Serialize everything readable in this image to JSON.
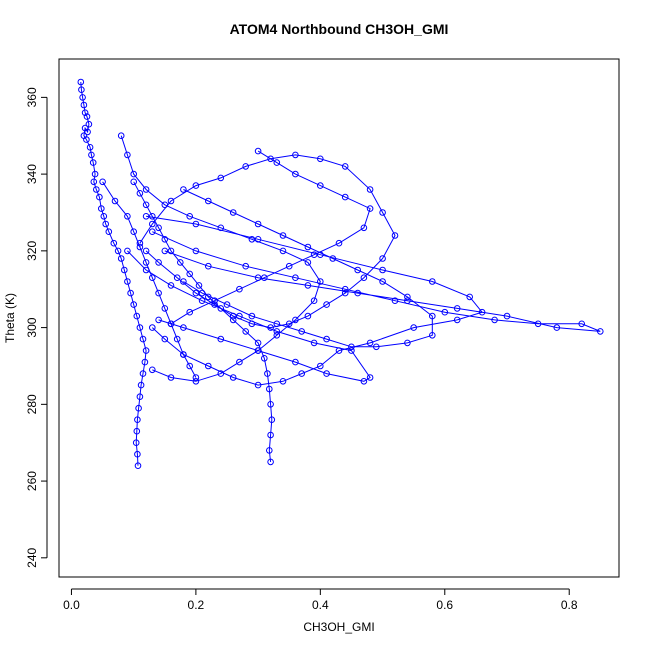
{
  "chart_data": {
    "type": "scatter",
    "title": "ATOM4 Northbound CH3OH_GMI",
    "xlabel": "CH3OH_GMI",
    "ylabel": "Theta (K)",
    "xlim": [
      -0.02,
      0.88
    ],
    "ylim": [
      235,
      370
    ],
    "x_ticks": [
      "0.0",
      "0.2",
      "0.4",
      "0.6",
      "0.8"
    ],
    "y_ticks": [
      "240",
      "260",
      "280",
      "300",
      "320",
      "340",
      "360"
    ],
    "grid": false,
    "legend": "none",
    "marker": "open-circle",
    "connected": true,
    "color": "#0000ff",
    "series": [
      {
        "points": [
          [
            0.015,
            364
          ],
          [
            0.016,
            362
          ],
          [
            0.018,
            360
          ],
          [
            0.02,
            358
          ],
          [
            0.022,
            356
          ],
          [
            0.025,
            355
          ],
          [
            0.028,
            353
          ],
          [
            0.026,
            351
          ],
          [
            0.022,
            352
          ],
          [
            0.02,
            350
          ],
          [
            0.024,
            349
          ],
          [
            0.03,
            347
          ],
          [
            0.032,
            345
          ],
          [
            0.035,
            343
          ],
          [
            0.038,
            340
          ],
          [
            0.036,
            338
          ],
          [
            0.04,
            336
          ],
          [
            0.045,
            334
          ],
          [
            0.048,
            331
          ],
          [
            0.052,
            329
          ],
          [
            0.055,
            327
          ],
          [
            0.06,
            325
          ],
          [
            0.068,
            322
          ],
          [
            0.075,
            320
          ],
          [
            0.08,
            318
          ],
          [
            0.085,
            315
          ],
          [
            0.09,
            312
          ],
          [
            0.095,
            309
          ],
          [
            0.1,
            306
          ],
          [
            0.105,
            303
          ],
          [
            0.11,
            300
          ],
          [
            0.115,
            297
          ],
          [
            0.12,
            294
          ],
          [
            0.118,
            291
          ],
          [
            0.115,
            288
          ],
          [
            0.112,
            285
          ],
          [
            0.11,
            282
          ],
          [
            0.108,
            279
          ],
          [
            0.106,
            276
          ],
          [
            0.105,
            273
          ],
          [
            0.104,
            270
          ],
          [
            0.106,
            267
          ],
          [
            0.107,
            264
          ]
        ]
      },
      {
        "points": [
          [
            0.1,
            338
          ],
          [
            0.11,
            335
          ],
          [
            0.12,
            332
          ],
          [
            0.13,
            329
          ],
          [
            0.14,
            326
          ],
          [
            0.15,
            323
          ],
          [
            0.16,
            320
          ],
          [
            0.175,
            317
          ],
          [
            0.19,
            314
          ],
          [
            0.205,
            311
          ],
          [
            0.22,
            308
          ],
          [
            0.24,
            305
          ],
          [
            0.26,
            302
          ],
          [
            0.28,
            299
          ],
          [
            0.3,
            296
          ],
          [
            0.31,
            292
          ],
          [
            0.315,
            288
          ],
          [
            0.318,
            284
          ],
          [
            0.32,
            280
          ],
          [
            0.322,
            276
          ],
          [
            0.32,
            272
          ],
          [
            0.318,
            268
          ],
          [
            0.32,
            265
          ]
        ]
      },
      {
        "points": [
          [
            0.11,
            322
          ],
          [
            0.13,
            327
          ],
          [
            0.16,
            333
          ],
          [
            0.2,
            337
          ],
          [
            0.24,
            339
          ],
          [
            0.28,
            342
          ],
          [
            0.32,
            344
          ],
          [
            0.36,
            345
          ],
          [
            0.4,
            344
          ],
          [
            0.44,
            342
          ],
          [
            0.48,
            336
          ],
          [
            0.5,
            330
          ],
          [
            0.52,
            324
          ],
          [
            0.5,
            318
          ],
          [
            0.47,
            313
          ],
          [
            0.44,
            309
          ],
          [
            0.41,
            306
          ],
          [
            0.38,
            303
          ],
          [
            0.35,
            301
          ],
          [
            0.32,
            300
          ],
          [
            0.29,
            301
          ],
          [
            0.26,
            303
          ],
          [
            0.23,
            306
          ],
          [
            0.2,
            309
          ],
          [
            0.17,
            313
          ],
          [
            0.14,
            317
          ],
          [
            0.12,
            320
          ]
        ]
      },
      {
        "points": [
          [
            0.13,
            325
          ],
          [
            0.2,
            320
          ],
          [
            0.28,
            316
          ],
          [
            0.36,
            313
          ],
          [
            0.44,
            310
          ],
          [
            0.52,
            307
          ],
          [
            0.6,
            304
          ],
          [
            0.68,
            302
          ],
          [
            0.75,
            301
          ],
          [
            0.82,
            301
          ],
          [
            0.85,
            299
          ],
          [
            0.78,
            300
          ],
          [
            0.7,
            303
          ],
          [
            0.62,
            305
          ],
          [
            0.54,
            307
          ],
          [
            0.46,
            309
          ],
          [
            0.38,
            311
          ],
          [
            0.3,
            313
          ],
          [
            0.22,
            316
          ],
          [
            0.15,
            320
          ]
        ]
      },
      {
        "points": [
          [
            0.12,
            329
          ],
          [
            0.2,
            327
          ],
          [
            0.3,
            323
          ],
          [
            0.4,
            319
          ],
          [
            0.5,
            315
          ],
          [
            0.58,
            312
          ],
          [
            0.64,
            308
          ],
          [
            0.66,
            304
          ],
          [
            0.62,
            302
          ],
          [
            0.55,
            300
          ],
          [
            0.48,
            296
          ],
          [
            0.43,
            294
          ],
          [
            0.4,
            290
          ],
          [
            0.37,
            288
          ],
          [
            0.34,
            286
          ],
          [
            0.3,
            285
          ],
          [
            0.26,
            287
          ],
          [
            0.22,
            290
          ],
          [
            0.18,
            293
          ],
          [
            0.15,
            297
          ],
          [
            0.13,
            300
          ]
        ]
      },
      {
        "points": [
          [
            0.18,
            336
          ],
          [
            0.22,
            333
          ],
          [
            0.26,
            330
          ],
          [
            0.3,
            327
          ],
          [
            0.34,
            324
          ],
          [
            0.38,
            321
          ],
          [
            0.42,
            318
          ],
          [
            0.46,
            315
          ],
          [
            0.5,
            312
          ],
          [
            0.54,
            308
          ],
          [
            0.58,
            303
          ],
          [
            0.58,
            298
          ],
          [
            0.54,
            296
          ],
          [
            0.49,
            295
          ],
          [
            0.45,
            295
          ],
          [
            0.41,
            297
          ],
          [
            0.37,
            299
          ],
          [
            0.33,
            301
          ],
          [
            0.29,
            303
          ],
          [
            0.25,
            306
          ],
          [
            0.21,
            309
          ],
          [
            0.18,
            312
          ]
        ]
      },
      {
        "points": [
          [
            0.08,
            350
          ],
          [
            0.09,
            345
          ],
          [
            0.1,
            340
          ],
          [
            0.12,
            336
          ],
          [
            0.15,
            332
          ],
          [
            0.19,
            329
          ],
          [
            0.24,
            326
          ],
          [
            0.29,
            323
          ],
          [
            0.34,
            320
          ],
          [
            0.38,
            317
          ],
          [
            0.4,
            312
          ],
          [
            0.39,
            307
          ],
          [
            0.36,
            302
          ],
          [
            0.33,
            298
          ],
          [
            0.3,
            294
          ],
          [
            0.27,
            291
          ],
          [
            0.24,
            288
          ],
          [
            0.2,
            286
          ],
          [
            0.16,
            287
          ],
          [
            0.13,
            289
          ]
        ]
      },
      {
        "points": [
          [
            0.3,
            346
          ],
          [
            0.33,
            343
          ],
          [
            0.36,
            340
          ],
          [
            0.4,
            337
          ],
          [
            0.44,
            334
          ],
          [
            0.48,
            331
          ],
          [
            0.47,
            326
          ],
          [
            0.43,
            322
          ],
          [
            0.39,
            319
          ],
          [
            0.35,
            316
          ],
          [
            0.31,
            313
          ],
          [
            0.27,
            310
          ],
          [
            0.23,
            307
          ],
          [
            0.19,
            304
          ],
          [
            0.16,
            301
          ]
        ]
      },
      {
        "points": [
          [
            0.09,
            320
          ],
          [
            0.12,
            315
          ],
          [
            0.16,
            311
          ],
          [
            0.21,
            307
          ],
          [
            0.27,
            303
          ],
          [
            0.33,
            299
          ],
          [
            0.39,
            296
          ],
          [
            0.45,
            294
          ],
          [
            0.48,
            287
          ],
          [
            0.47,
            286
          ],
          [
            0.41,
            288
          ],
          [
            0.36,
            291
          ],
          [
            0.3,
            294
          ],
          [
            0.24,
            297
          ],
          [
            0.18,
            300
          ],
          [
            0.14,
            302
          ]
        ]
      },
      {
        "points": [
          [
            0.05,
            338
          ],
          [
            0.07,
            333
          ],
          [
            0.09,
            329
          ],
          [
            0.1,
            325
          ],
          [
            0.11,
            321
          ],
          [
            0.12,
            317
          ],
          [
            0.13,
            313
          ],
          [
            0.14,
            309
          ],
          [
            0.15,
            305
          ],
          [
            0.16,
            301
          ],
          [
            0.17,
            297
          ],
          [
            0.18,
            293
          ],
          [
            0.19,
            290
          ],
          [
            0.2,
            287
          ]
        ]
      }
    ]
  }
}
